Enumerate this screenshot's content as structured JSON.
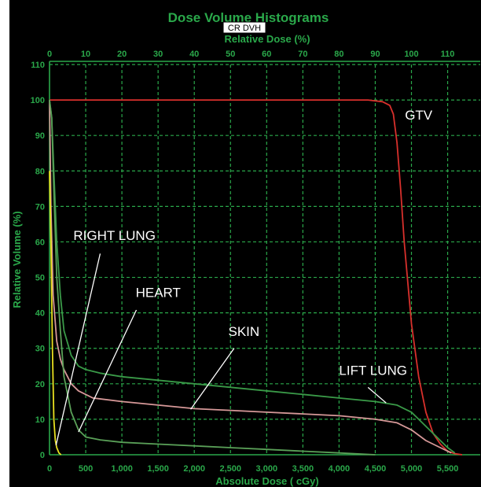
{
  "chart_data": {
    "type": "line",
    "title": "Dose Volume Histograms",
    "tag": "CR DVH",
    "xlabel": "Absolute Dose ( cGy)",
    "x2label": "Relative Dose (%)",
    "ylabel": "Relative Volume (%)",
    "xlim": [
      0,
      5950
    ],
    "x2lim": [
      0,
      119
    ],
    "ylim": [
      0,
      110
    ],
    "xticks": [
      0,
      500,
      1000,
      1500,
      2000,
      2500,
      3000,
      3500,
      4000,
      4500,
      5000,
      5500
    ],
    "xtick_labels": [
      "0",
      "500",
      "1,000",
      "1,500",
      "2,000",
      "2,500",
      "3,000",
      "3,500",
      "4,000",
      "4,500",
      "5,000",
      "5,500"
    ],
    "x2ticks": [
      0,
      10,
      20,
      30,
      40,
      50,
      60,
      70,
      80,
      90,
      100,
      110
    ],
    "x2tick_labels": [
      "0",
      "10",
      "20",
      "30",
      "40",
      "50",
      "60",
      "70",
      "80",
      "90",
      "100",
      "110"
    ],
    "yticks": [
      0,
      10,
      20,
      30,
      40,
      50,
      60,
      70,
      80,
      90,
      100,
      110
    ],
    "ytick_labels": [
      "0",
      "10",
      "20",
      "30",
      "40",
      "50",
      "60",
      "70",
      "80",
      "90",
      "100",
      "110"
    ],
    "grid": true,
    "colors": {
      "background": "#000000",
      "grid": "#2aa84a",
      "axis_text": "#2aa84a",
      "annotation": "#ffffff"
    },
    "series": [
      {
        "key": "gtv",
        "color": "#d8302c",
        "x": [
          0,
          4400,
          4600,
          4700,
          4750,
          4800,
          4850,
          4900,
          5000,
          5100,
          5200,
          5300,
          5400,
          5500,
          5600,
          5700
        ],
        "y": [
          100,
          100,
          99.5,
          98.5,
          96,
          88,
          75,
          60,
          37,
          22,
          12,
          6,
          3,
          1,
          0.3,
          0
        ]
      },
      {
        "key": "left_lung",
        "color": "#3a9a48",
        "x": [
          0,
          30,
          60,
          100,
          150,
          200,
          300,
          400,
          500,
          700,
          1000,
          1500,
          2000,
          2500,
          3000,
          3500,
          4000,
          4500,
          4800,
          5000,
          5100,
          5200,
          5300,
          5400,
          5500,
          5600
        ],
        "y": [
          100,
          95,
          80,
          60,
          45,
          35,
          28,
          25,
          24,
          23,
          22,
          21,
          20,
          19,
          18,
          17,
          16,
          15,
          14,
          12,
          10,
          8,
          6,
          4,
          2,
          0.5
        ]
      },
      {
        "key": "skin",
        "color": "#d69898",
        "x": [
          0,
          20,
          50,
          100,
          150,
          200,
          300,
          400,
          600,
          1000,
          1500,
          2000,
          2500,
          3000,
          3500,
          4000,
          4500,
          4800,
          5000,
          5200,
          5400,
          5550
        ],
        "y": [
          100,
          70,
          45,
          32,
          27,
          24,
          20,
          18,
          16,
          15,
          14,
          13,
          12.5,
          12,
          11.5,
          11,
          10,
          9,
          7,
          4,
          2,
          0.5
        ]
      },
      {
        "key": "heart",
        "color": "#5aa058",
        "x": [
          0,
          30,
          60,
          100,
          150,
          200,
          300,
          400,
          500,
          700,
          1000,
          1500,
          2000,
          2500,
          3000,
          3500,
          4000,
          4500
        ],
        "y": [
          100,
          95,
          75,
          50,
          35,
          22,
          12,
          7,
          5,
          4.2,
          3.5,
          3,
          2.5,
          2,
          1.5,
          1,
          0.5,
          0
        ]
      },
      {
        "key": "right_lung",
        "color": "#e8e020",
        "x": [
          0,
          20,
          40,
          60,
          80,
          100,
          130,
          160
        ],
        "y": [
          80,
          60,
          30,
          10,
          4,
          2,
          0.5,
          0
        ]
      }
    ],
    "annotations": [
      {
        "text": "GTV",
        "x": 4910,
        "y": 94.5,
        "line": false
      },
      {
        "text": "LIFT LUNG",
        "x": 4000,
        "y": 22.5,
        "line": true,
        "line_from": [
          4400,
          19
        ],
        "line_to": [
          4650,
          14.6
        ]
      },
      {
        "text": "SKIN",
        "x": 2470,
        "y": 33.5,
        "line": true,
        "line_from": [
          2550,
          30
        ],
        "line_to": [
          1950,
          12.8
        ]
      },
      {
        "text": "HEART",
        "x": 1190,
        "y": 44.5,
        "line": true,
        "line_from": [
          1200,
          40.8
        ],
        "line_to": [
          400,
          6.4
        ]
      },
      {
        "text": "RIGHT LUNG",
        "x": 330,
        "y": 60.5,
        "line": true,
        "line_from": [
          700,
          56.7
        ],
        "line_to": [
          90,
          2.7
        ]
      }
    ]
  }
}
